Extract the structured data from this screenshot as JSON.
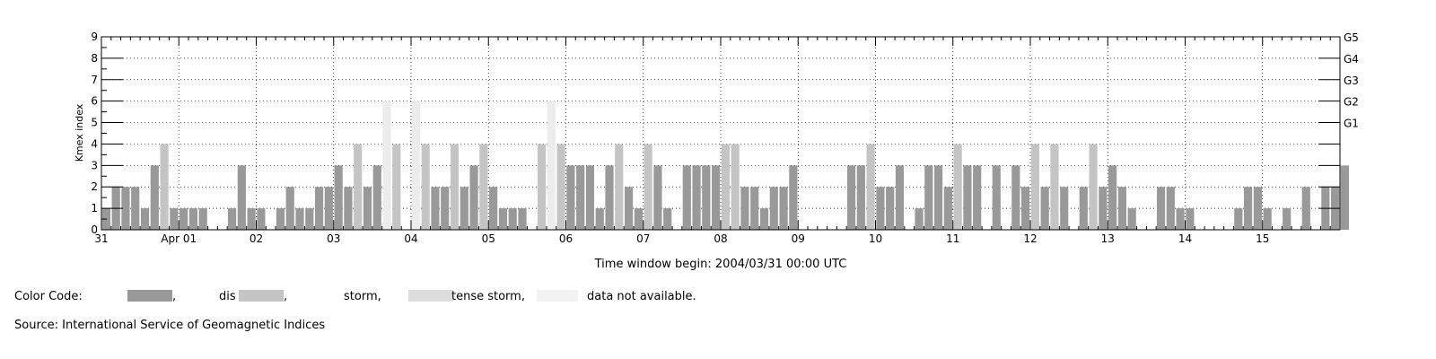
{
  "chart_data": {
    "type": "bar",
    "ylabel": "Kmex index",
    "xlabel": "Time window begin: 2004/03/31 00:00 UTC",
    "ylim": [
      0,
      9
    ],
    "y_ticks": [
      "0",
      "1",
      "2",
      "3",
      "4",
      "5",
      "6",
      "7",
      "8",
      "9"
    ],
    "g_scale": [
      {
        "label": "G1",
        "level": 5
      },
      {
        "label": "G2",
        "level": 6
      },
      {
        "label": "G3",
        "level": 7
      },
      {
        "label": "G4",
        "level": 8
      },
      {
        "label": "G5",
        "level": 9
      }
    ],
    "x_tick_labels": [
      "31",
      "Apr 01",
      "02",
      "03",
      "04",
      "05",
      "06",
      "07",
      "08",
      "09",
      "10",
      "11",
      "12",
      "13",
      "14",
      "15"
    ],
    "grid": "dotted",
    "bar_interval_hours": 3,
    "values": [
      1,
      2,
      2,
      2,
      1,
      3,
      4,
      1,
      1,
      1,
      1,
      0,
      0,
      1,
      3,
      1,
      1,
      0,
      1,
      2,
      1,
      1,
      2,
      2,
      3,
      2,
      4,
      2,
      3,
      6,
      4,
      0,
      6,
      4,
      2,
      2,
      4,
      2,
      3,
      4,
      2,
      1,
      1,
      1,
      0,
      4,
      6,
      4,
      3,
      3,
      3,
      1,
      3,
      4,
      2,
      1,
      4,
      3,
      1,
      0,
      3,
      3,
      3,
      3,
      4,
      4,
      2,
      2,
      1,
      2,
      2,
      3,
      0,
      0,
      0,
      0,
      0,
      3,
      3,
      4,
      2,
      2,
      3,
      0,
      1,
      3,
      3,
      2,
      4,
      3,
      3,
      0,
      3,
      0,
      3,
      2,
      4,
      2,
      4,
      2,
      0,
      2,
      4,
      2,
      3,
      2,
      1,
      0,
      0,
      2,
      2,
      1,
      1,
      0,
      0,
      0,
      0,
      1,
      2,
      2,
      1,
      0,
      1,
      0,
      2,
      0,
      2,
      2,
      3
    ],
    "colors": {
      "quiet": "#999999",
      "disturbed": "#c4c4c4",
      "storm": "#dcdcdc",
      "intense_storm": "#ececec",
      "not_available": "#f6f6f6"
    }
  },
  "legend": {
    "title": "Color Code:",
    "item1": ",",
    "item2_a": "dis",
    "item2_b": ",",
    "item3": "storm,",
    "item4": "tense storm,",
    "item5": "data not available."
  },
  "source": "Source: International Service of Geomagnetic Indices"
}
